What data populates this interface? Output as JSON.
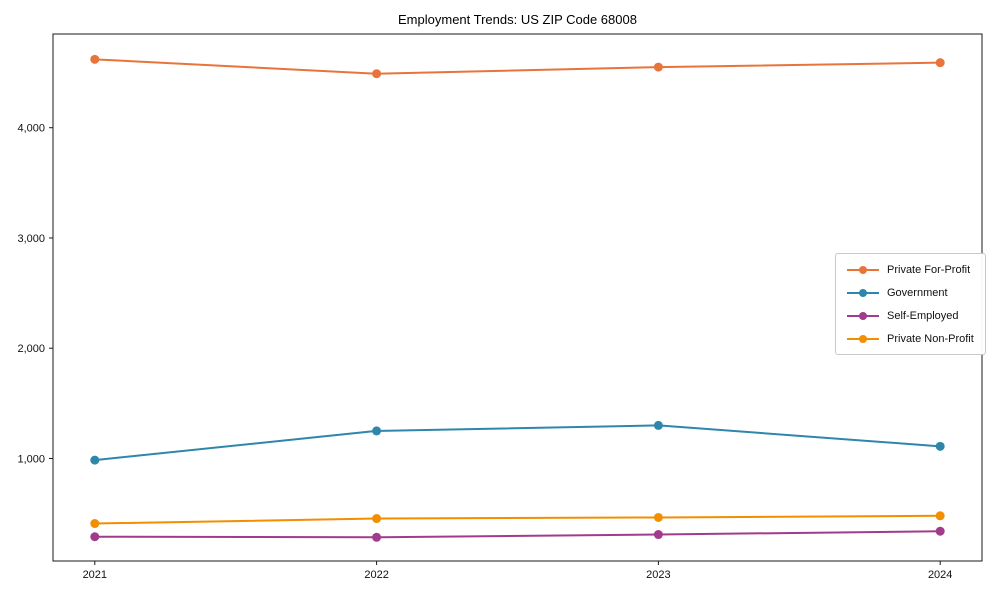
{
  "chart_data": {
    "type": "line",
    "title": "Employment Trends: US ZIP Code 68008",
    "x": [
      "2021",
      "2022",
      "2023",
      "2024"
    ],
    "series": [
      {
        "name": "Private For-Profit",
        "color": "#E8743B",
        "values": [
          4620,
          4490,
          4550,
          4590
        ]
      },
      {
        "name": "Government",
        "color": "#2E86AB",
        "values": [
          985,
          1250,
          1300,
          1110
        ]
      },
      {
        "name": "Self-Employed",
        "color": "#A23B8C",
        "values": [
          290,
          285,
          310,
          340
        ]
      },
      {
        "name": "Private Non-Profit",
        "color": "#F18F01",
        "values": [
          410,
          455,
          465,
          480
        ]
      }
    ],
    "xlabel": "",
    "ylabel": "",
    "ylim": [
      70,
      4850
    ],
    "yticks": [
      1000,
      2000,
      3000,
      4000
    ],
    "ytick_labels": [
      "1,000",
      "2,000",
      "3,000",
      "4,000"
    ],
    "grid": false,
    "legend_position": "center-right",
    "marker": "circle",
    "axis_color": "#1a1a1a",
    "background_color": "#ffffff"
  }
}
